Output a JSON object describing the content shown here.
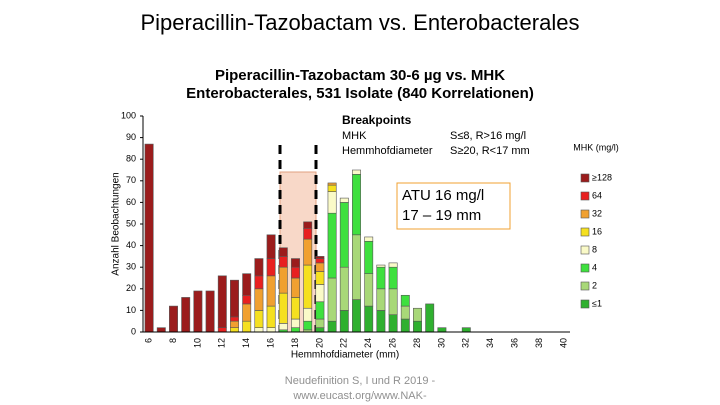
{
  "slide_title": "Piperacillin-Tazobactam vs. Enterobacterales",
  "footer": [
    "Neudefinition S, I und R 2019 -",
    "www.eucast.org/www.NAK-"
  ],
  "chart_data": {
    "type": "bar",
    "stacked": true,
    "title": [
      "Piperacillin-Tazobactam 30-6 µg vs. MHK",
      "Enterobacterales, 531 Isolate (840 Korrelationen)"
    ],
    "xlabel": "Hemmhofdiameter (mm)",
    "ylabel": "Anzahl Beobachtungen",
    "legend_title": "MHK (mg/l)",
    "breakpoints": {
      "title": "Breakpoints",
      "rows": [
        [
          "MHK",
          "S≤8, R>16 mg/l"
        ],
        [
          "Hemmhofdiameter",
          "S≥20, R<17 mm"
        ]
      ]
    },
    "annotation": [
      "ATU 16 mg/l",
      "17 – 19 mm"
    ],
    "categories": [
      "6",
      null,
      "8",
      null,
      "10",
      null,
      "12",
      null,
      "14",
      null,
      "16",
      null,
      "18",
      null,
      "20",
      null,
      "22",
      null,
      "24",
      null,
      "26",
      null,
      "28",
      null,
      "30",
      null,
      "32",
      null,
      "34",
      null,
      "36",
      null,
      "38",
      null,
      "40"
    ],
    "ylim": [
      0,
      100
    ],
    "yticks": [
      0,
      10,
      20,
      30,
      40,
      50,
      60,
      70,
      80,
      90,
      100
    ],
    "grid": false,
    "series": [
      {
        "name": "≥128",
        "color": "#9b1c1c",
        "values": [
          87,
          2,
          12,
          16,
          19,
          19,
          24,
          17,
          10,
          8,
          11,
          4,
          4,
          3,
          1,
          0,
          0,
          0,
          0,
          0,
          0,
          0,
          0,
          0,
          0,
          0,
          0,
          0,
          0,
          0,
          0,
          0,
          0,
          0,
          0
        ]
      },
      {
        "name": "64",
        "color": "#e82020",
        "values": [
          0,
          0,
          0,
          0,
          0,
          0,
          2,
          2,
          4,
          6,
          8,
          5,
          5,
          5,
          2,
          0,
          0,
          0,
          0,
          0,
          0,
          0,
          0,
          0,
          0,
          0,
          0,
          0,
          0,
          0,
          0,
          0,
          0,
          0,
          0
        ]
      },
      {
        "name": "32",
        "color": "#f0a030",
        "values": [
          0,
          0,
          0,
          0,
          0,
          0,
          0,
          3,
          8,
          10,
          14,
          12,
          9,
          12,
          4,
          1,
          0,
          0,
          0,
          0,
          0,
          0,
          0,
          0,
          0,
          0,
          0,
          0,
          0,
          0,
          0,
          0,
          0,
          0,
          0
        ]
      },
      {
        "name": "16",
        "color": "#f5e020",
        "values": [
          0,
          0,
          0,
          0,
          0,
          0,
          0,
          2,
          5,
          8,
          10,
          14,
          10,
          20,
          6,
          3,
          0,
          0,
          0,
          0,
          0,
          0,
          0,
          0,
          0,
          0,
          0,
          0,
          0,
          0,
          0,
          0,
          0,
          0,
          0
        ]
      },
      {
        "name": "8",
        "color": "#fafac8",
        "values": [
          0,
          0,
          0,
          0,
          0,
          0,
          0,
          0,
          0,
          2,
          2,
          3,
          4,
          6,
          8,
          10,
          2,
          2,
          2,
          1,
          2,
          0,
          0,
          0,
          0,
          0,
          0,
          0,
          0,
          0,
          0,
          0,
          0,
          0,
          0
        ]
      },
      {
        "name": "4",
        "color": "#3ee03e",
        "values": [
          0,
          0,
          0,
          0,
          0,
          0,
          0,
          0,
          0,
          0,
          0,
          1,
          2,
          4,
          8,
          30,
          30,
          28,
          15,
          10,
          10,
          5,
          0,
          0,
          0,
          0,
          0,
          0,
          0,
          0,
          0,
          0,
          0,
          0,
          0
        ]
      },
      {
        "name": "2",
        "color": "#a8d878",
        "values": [
          0,
          0,
          0,
          0,
          0,
          0,
          0,
          0,
          0,
          0,
          0,
          0,
          0,
          1,
          4,
          20,
          20,
          30,
          15,
          10,
          12,
          6,
          6,
          0,
          0,
          0,
          0,
          0,
          0,
          0,
          0,
          0,
          0,
          0,
          0
        ]
      },
      {
        "name": "≤1",
        "color": "#2fb02f",
        "values": [
          0,
          0,
          0,
          0,
          0,
          0,
          0,
          0,
          0,
          0,
          0,
          0,
          0,
          0,
          2,
          5,
          10,
          15,
          12,
          10,
          8,
          6,
          5,
          13,
          2,
          0,
          2,
          0,
          0,
          0,
          0,
          0,
          0,
          0,
          0
        ]
      }
    ]
  }
}
